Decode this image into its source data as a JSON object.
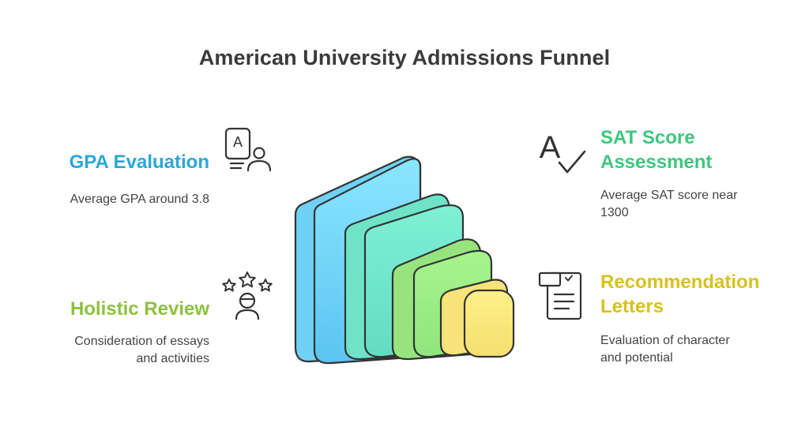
{
  "title": "American University Admissions Funnel",
  "colors": {
    "gpa": "#2ba7d8",
    "sat": "#3cc77f",
    "holistic": "#8dc23f",
    "recommendation": "#d8c21a",
    "outline": "#333333"
  },
  "items": {
    "gpa": {
      "heading": "GPA Evaluation",
      "description": "Average GPA around 3.8",
      "icon": "grade-report-person-icon",
      "icon_letter": "A"
    },
    "sat": {
      "heading_line1": "SAT Score",
      "heading_line2": "Assessment",
      "description_line1": "Average SAT score near",
      "description_line2": "1300",
      "icon": "a-checkmark-icon",
      "icon_letter": "A"
    },
    "holistic": {
      "heading": "Holistic Review",
      "description_line1": "Consideration of essays",
      "description_line2": "and activities",
      "icon": "person-stars-icon"
    },
    "recommendation": {
      "heading_line1": "Recommendation",
      "heading_line2": "Letters",
      "description_line1": "Evaluation of character",
      "description_line2": "and potential",
      "icon": "document-checkbox-icon"
    }
  }
}
